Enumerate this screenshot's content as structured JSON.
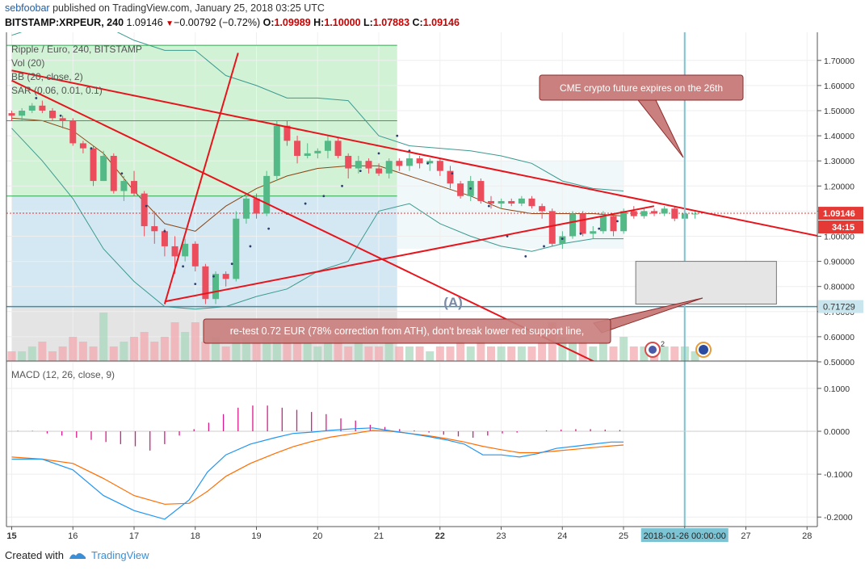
{
  "header": {
    "author": "sebfoobar",
    "published_text": "published on TradingView.com, January 25, 2018 03:25 UTC",
    "symbol": "BITSTAMP:XRPEUR, 240",
    "last": "1.09146",
    "change": "−0.00792 (−0.72%)",
    "o_label": "O:",
    "o_value": "1.09989",
    "h_label": "H:",
    "h_value": "1.10000",
    "l_label": "L:",
    "l_value": "1.07883",
    "c_label": "C:",
    "c_value": "1.09146"
  },
  "legend": {
    "title": "Ripple / Euro, 240, BITSTAMP",
    "vol": "Vol (20)",
    "bb": "BB (20, close, 2)",
    "sar": "SAR (0.06, 0.01, 0.1)"
  },
  "annotations": {
    "cme": "CME crypto future expires on the 26th",
    "retest": "re-test 0.72 EUR (78% correction from ATH), don't break lower red support line,",
    "wave_label": "(A)",
    "event_badge": "2"
  },
  "price_labels": {
    "current": "1.09146",
    "countdown": "34:15",
    "level": "0.71729"
  },
  "time_cursor_label": "2018-01-26 00:00:00",
  "macd_label": "MACD (12, 26, close, 9)",
  "footer": {
    "created_with": "Created with",
    "brand": "TradingView"
  },
  "colors": {
    "up": "#53b987",
    "down": "#eb4d5c",
    "trend": "#e8141c",
    "bb": "#3c9a8f",
    "basis": "#8b4513",
    "sar": "#2c3e6e",
    "macd": "#2196f3",
    "signal": "#ff6d00",
    "hist": "#d81b8a",
    "cursor": "#7cc4d4"
  },
  "chart_data": {
    "type": "candlestick",
    "title": "Ripple / Euro, 240, BITSTAMP",
    "price_axis": {
      "ticks": [
        1.7,
        1.6,
        1.5,
        1.4,
        1.3,
        1.2,
        1.1,
        1.0,
        0.9,
        0.8,
        0.7,
        0.6,
        0.5
      ]
    },
    "time_axis": {
      "ticks": [
        "15",
        "16",
        "17",
        "18",
        "19",
        "20",
        "21",
        "22",
        "23",
        "24",
        "25",
        "26",
        "27",
        "28"
      ]
    },
    "macd_axis": {
      "ticks": [
        0.1,
        0.0,
        -0.1,
        -0.2
      ]
    },
    "x_start": 15.0,
    "x_step": 0.1667,
    "candles": [
      [
        1.49,
        1.5,
        1.46,
        1.48
      ],
      [
        1.48,
        1.51,
        1.46,
        1.5
      ],
      [
        1.5,
        1.53,
        1.49,
        1.52
      ],
      [
        1.52,
        1.54,
        1.49,
        1.5
      ],
      [
        1.5,
        1.51,
        1.46,
        1.47
      ],
      [
        1.47,
        1.48,
        1.43,
        1.46
      ],
      [
        1.46,
        1.47,
        1.36,
        1.37
      ],
      [
        1.37,
        1.38,
        1.33,
        1.35
      ],
      [
        1.35,
        1.36,
        1.2,
        1.22
      ],
      [
        1.22,
        1.34,
        1.22,
        1.32
      ],
      [
        1.32,
        1.33,
        1.17,
        1.18
      ],
      [
        1.18,
        1.24,
        1.14,
        1.22
      ],
      [
        1.22,
        1.26,
        1.16,
        1.17
      ],
      [
        1.17,
        1.18,
        1.0,
        1.04
      ],
      [
        1.04,
        1.1,
        0.97,
        1.02
      ],
      [
        1.02,
        1.03,
        0.92,
        0.96
      ],
      [
        0.96,
        1.0,
        0.85,
        0.92
      ],
      [
        0.92,
        0.99,
        0.9,
        0.97
      ],
      [
        0.97,
        0.98,
        0.86,
        0.88
      ],
      [
        0.88,
        0.89,
        0.73,
        0.75
      ],
      [
        0.75,
        0.86,
        0.73,
        0.85
      ],
      [
        0.85,
        0.86,
        0.8,
        0.83
      ],
      [
        0.83,
        1.1,
        0.82,
        1.07
      ],
      [
        1.07,
        1.16,
        1.05,
        1.15
      ],
      [
        1.15,
        1.17,
        1.07,
        1.09
      ],
      [
        1.09,
        1.26,
        1.08,
        1.24
      ],
      [
        1.24,
        1.46,
        1.22,
        1.44
      ],
      [
        1.44,
        1.46,
        1.36,
        1.38
      ],
      [
        1.38,
        1.4,
        1.29,
        1.32
      ],
      [
        1.32,
        1.37,
        1.31,
        1.33
      ],
      [
        1.33,
        1.35,
        1.31,
        1.34
      ],
      [
        1.34,
        1.4,
        1.31,
        1.38
      ],
      [
        1.38,
        1.39,
        1.31,
        1.32
      ],
      [
        1.32,
        1.33,
        1.23,
        1.27
      ],
      [
        1.27,
        1.32,
        1.25,
        1.3
      ],
      [
        1.3,
        1.31,
        1.25,
        1.27
      ],
      [
        1.27,
        1.29,
        1.24,
        1.25
      ],
      [
        1.25,
        1.31,
        1.23,
        1.3
      ],
      [
        1.3,
        1.31,
        1.26,
        1.28
      ],
      [
        1.28,
        1.33,
        1.26,
        1.31
      ],
      [
        1.31,
        1.32,
        1.27,
        1.29
      ],
      [
        1.29,
        1.31,
        1.26,
        1.3
      ],
      [
        1.3,
        1.31,
        1.24,
        1.26
      ],
      [
        1.26,
        1.28,
        1.19,
        1.21
      ],
      [
        1.21,
        1.22,
        1.15,
        1.16
      ],
      [
        1.16,
        1.24,
        1.14,
        1.22
      ],
      [
        1.22,
        1.23,
        1.13,
        1.14
      ],
      [
        1.14,
        1.16,
        1.11,
        1.13
      ],
      [
        1.13,
        1.15,
        1.11,
        1.14
      ],
      [
        1.14,
        1.15,
        1.12,
        1.13
      ],
      [
        1.13,
        1.16,
        1.12,
        1.15
      ],
      [
        1.15,
        1.16,
        1.11,
        1.12
      ],
      [
        1.12,
        1.13,
        1.07,
        1.1
      ],
      [
        1.1,
        1.11,
        0.96,
        0.97
      ],
      [
        0.97,
        1.02,
        0.95,
        1.0
      ],
      [
        1.0,
        1.1,
        0.99,
        1.09
      ],
      [
        1.09,
        1.1,
        1.0,
        1.01
      ],
      [
        1.01,
        1.04,
        0.99,
        1.02
      ],
      [
        1.02,
        1.1,
        1.01,
        1.08
      ],
      [
        1.08,
        1.09,
        1.0,
        1.02
      ],
      [
        1.02,
        1.11,
        1.01,
        1.1
      ],
      [
        1.1,
        1.12,
        1.07,
        1.08
      ],
      [
        1.08,
        1.11,
        1.07,
        1.1
      ],
      [
        1.1,
        1.11,
        1.08,
        1.09
      ],
      [
        1.09,
        1.12,
        1.08,
        1.11
      ],
      [
        1.11,
        1.12,
        1.06,
        1.07
      ],
      [
        1.07,
        1.1,
        1.06,
        1.09
      ],
      [
        1.09,
        1.1,
        1.07,
        1.09
      ]
    ],
    "bb_upper_points": [
      [
        15.0,
        1.8
      ],
      [
        15.5,
        1.84
      ],
      [
        16.0,
        1.84
      ],
      [
        16.5,
        1.84
      ],
      [
        17.0,
        1.78
      ],
      [
        17.5,
        1.74
      ],
      [
        18.0,
        1.74
      ],
      [
        18.5,
        1.64
      ],
      [
        19.0,
        1.6
      ],
      [
        19.5,
        1.55
      ],
      [
        20.0,
        1.55
      ],
      [
        20.5,
        1.54
      ],
      [
        21.0,
        1.4
      ],
      [
        21.5,
        1.36
      ],
      [
        22.0,
        1.35
      ],
      [
        22.5,
        1.34
      ],
      [
        23.0,
        1.32
      ],
      [
        23.5,
        1.29
      ],
      [
        24.0,
        1.22
      ],
      [
        24.5,
        1.19
      ],
      [
        25.0,
        1.18
      ]
    ],
    "bb_basis_points": [
      [
        15.0,
        1.47
      ],
      [
        15.5,
        1.46
      ],
      [
        16.0,
        1.42
      ],
      [
        16.5,
        1.33
      ],
      [
        17.0,
        1.18
      ],
      [
        17.5,
        1.05
      ],
      [
        18.0,
        1.02
      ],
      [
        18.5,
        1.12
      ],
      [
        19.0,
        1.19
      ],
      [
        19.5,
        1.24
      ],
      [
        20.0,
        1.27
      ],
      [
        20.5,
        1.28
      ],
      [
        21.0,
        1.28
      ],
      [
        21.5,
        1.24
      ],
      [
        22.0,
        1.2
      ],
      [
        22.5,
        1.16
      ],
      [
        23.0,
        1.11
      ],
      [
        23.5,
        1.09
      ],
      [
        24.0,
        1.09
      ],
      [
        24.5,
        1.09
      ],
      [
        25.0,
        1.08
      ]
    ],
    "bb_lower_points": [
      [
        15.0,
        1.43
      ],
      [
        15.5,
        1.3
      ],
      [
        16.0,
        1.15
      ],
      [
        16.5,
        0.95
      ],
      [
        17.0,
        0.82
      ],
      [
        17.5,
        0.72
      ],
      [
        18.0,
        0.71
      ],
      [
        18.5,
        0.72
      ],
      [
        19.0,
        0.76
      ],
      [
        19.5,
        0.79
      ],
      [
        20.0,
        0.86
      ],
      [
        20.5,
        0.9
      ],
      [
        21.0,
        1.1
      ],
      [
        21.5,
        1.13
      ],
      [
        22.0,
        1.05
      ],
      [
        22.5,
        1.0
      ],
      [
        23.0,
        0.96
      ],
      [
        23.5,
        0.94
      ],
      [
        24.0,
        0.97
      ],
      [
        24.5,
        0.99
      ],
      [
        25.0,
        0.99
      ]
    ],
    "sar_points": [
      [
        15.4,
        1.55
      ],
      [
        15.8,
        1.48
      ],
      [
        16.3,
        1.35
      ],
      [
        16.8,
        1.25
      ],
      [
        17.2,
        1.12
      ],
      [
        17.5,
        1.02
      ],
      [
        17.8,
        0.88
      ],
      [
        18.0,
        0.81
      ],
      [
        18.3,
        0.84
      ],
      [
        18.6,
        0.89
      ],
      [
        18.9,
        0.96
      ],
      [
        19.2,
        1.03
      ],
      [
        19.5,
        1.09
      ],
      [
        19.8,
        1.13
      ],
      [
        20.1,
        1.16
      ],
      [
        20.4,
        1.2
      ],
      [
        20.7,
        1.26
      ],
      [
        21.0,
        1.33
      ],
      [
        21.3,
        1.4
      ],
      [
        21.5,
        1.34
      ],
      [
        21.8,
        1.29
      ],
      [
        22.2,
        1.25
      ],
      [
        22.5,
        1.19
      ],
      [
        22.8,
        1.12
      ],
      [
        23.1,
        1.0
      ],
      [
        23.4,
        0.92
      ],
      [
        23.7,
        0.96
      ],
      [
        24.0,
        0.99
      ],
      [
        24.3,
        1.01
      ],
      [
        24.6,
        1.03
      ],
      [
        24.9,
        1.06
      ]
    ],
    "trend_lines": [
      {
        "x1": 15.0,
        "y1": 1.66,
        "x2": 29.0,
        "y2": 0.96
      },
      {
        "x1": 15.0,
        "y1": 1.62,
        "x2": 24.7,
        "y2": 0.48
      },
      {
        "x1": 17.5,
        "y1": 0.73,
        "x2": 18.7,
        "y2": 1.73
      },
      {
        "x1": 17.5,
        "y1": 0.74,
        "x2": 25.5,
        "y2": 1.12
      }
    ],
    "levels": [
      1.76,
      1.46,
      1.16,
      0.72
    ],
    "shaded_zones": [
      {
        "x_from": 15.0,
        "x_to": 21.3,
        "price_from": 1.16,
        "price_to": 1.76,
        "color": "green"
      },
      {
        "x_from": 15.0,
        "x_to": 21.3,
        "price_from": 0.72,
        "price_to": 1.16,
        "color": "blue"
      },
      {
        "x_from": 15.0,
        "x_to": 21.3,
        "price_from": 0.5,
        "price_to": 0.72,
        "color": "grey"
      },
      {
        "x_from": 21.3,
        "x_to": 25.0,
        "price_from": 0.95,
        "price_to": 1.3,
        "color": "light"
      }
    ],
    "box": {
      "x_from": 25.2,
      "x_to": 27.5,
      "price_from": 0.73,
      "price_to": 0.9
    },
    "time_cursor_x": 26.0,
    "volume": [
      2,
      2,
      3,
      4,
      2,
      3,
      5,
      4,
      3,
      10,
      3,
      4,
      5,
      6,
      4,
      5,
      8,
      6,
      8,
      4,
      5,
      3,
      6,
      5,
      4,
      7,
      6,
      5,
      4,
      4,
      3,
      4,
      5,
      3,
      4,
      3,
      3,
      4,
      3,
      3,
      3,
      2,
      3,
      3,
      4,
      3,
      4,
      3,
      3,
      3,
      3,
      3,
      4,
      8,
      5,
      4,
      4,
      3,
      4,
      3,
      5,
      3,
      3,
      3,
      3,
      3,
      3,
      2
    ],
    "macd": {
      "x": [
        15.0,
        15.5,
        16.0,
        16.5,
        17.0,
        17.5,
        17.9,
        18.2,
        18.5,
        18.9,
        19.3,
        19.6,
        19.9,
        20.2,
        20.6,
        20.9,
        21.2,
        21.5,
        21.8,
        22.1,
        22.4,
        22.7,
        23.0,
        23.3,
        23.6,
        23.9,
        24.2,
        24.5,
        24.8,
        25.0
      ],
      "macd": [
        -0.065,
        -0.065,
        -0.09,
        -0.15,
        -0.185,
        -0.205,
        -0.16,
        -0.095,
        -0.055,
        -0.03,
        -0.015,
        -0.005,
        -0.002,
        0.002,
        0.006,
        0.008,
        0.001,
        -0.005,
        -0.012,
        -0.02,
        -0.03,
        -0.055,
        -0.055,
        -0.06,
        -0.052,
        -0.04,
        -0.035,
        -0.03,
        -0.025,
        -0.025
      ],
      "signal": [
        -0.06,
        -0.065,
        -0.075,
        -0.11,
        -0.15,
        -0.17,
        -0.168,
        -0.14,
        -0.105,
        -0.075,
        -0.052,
        -0.036,
        -0.024,
        -0.014,
        -0.005,
        0.002,
        0.0,
        -0.005,
        -0.01,
        -0.017,
        -0.025,
        -0.035,
        -0.043,
        -0.05,
        -0.05,
        -0.046,
        -0.042,
        -0.038,
        -0.034,
        -0.032
      ],
      "hist": [
        0.001,
        0.001,
        -0.005,
        -0.01,
        -0.015,
        -0.02,
        -0.025,
        -0.03,
        -0.035,
        -0.045,
        -0.03,
        -0.01,
        0.005,
        0.02,
        0.04,
        0.055,
        0.06,
        0.06,
        0.055,
        0.05,
        0.045,
        0.04,
        0.03,
        0.025,
        0.015,
        0.01,
        0.005,
        0.002,
        -0.003,
        -0.008,
        -0.012,
        -0.015,
        -0.01,
        -0.005,
        -0.003,
        0.0,
        0.002,
        0.004,
        0.005,
        0.005,
        0.004,
        0.003
      ]
    }
  }
}
